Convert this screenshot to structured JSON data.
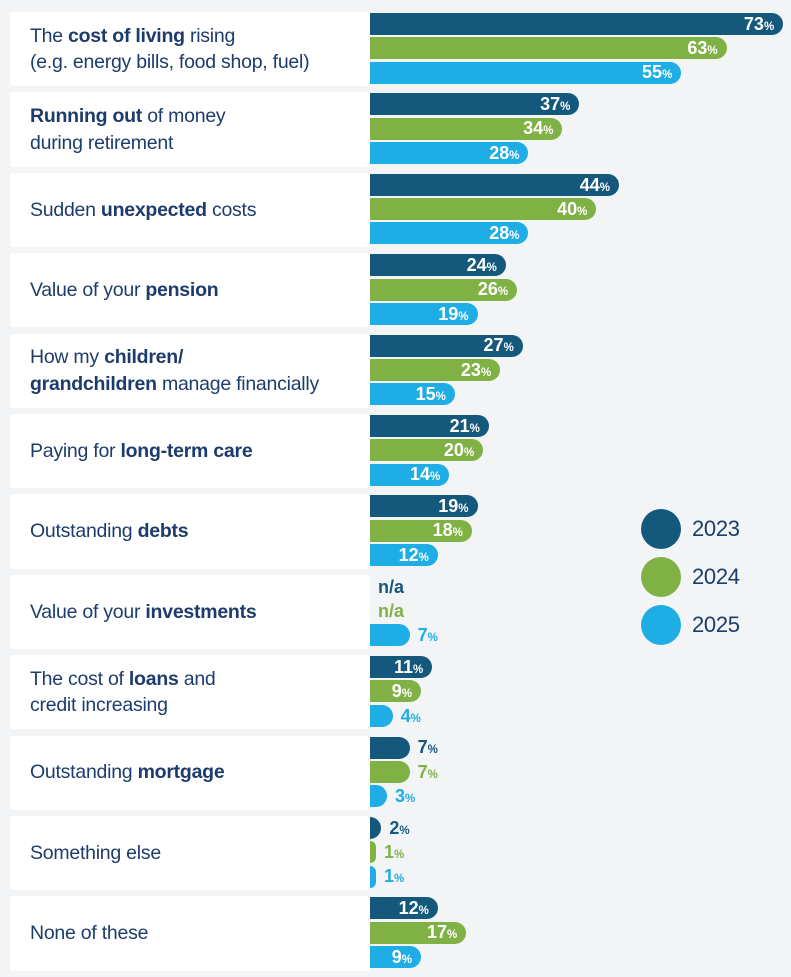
{
  "chart_data": {
    "type": "bar",
    "orientation": "horizontal",
    "unit": "%",
    "na_label": "n/a",
    "series_names": [
      "2023",
      "2024",
      "2025"
    ],
    "series_colors": {
      "2023": "#14597c",
      "2024": "#80b144",
      "2025": "#1eade4"
    },
    "legend": [
      {
        "label": "2023",
        "color": "#14597c"
      },
      {
        "label": "2024",
        "color": "#80b144"
      },
      {
        "label": "2025",
        "color": "#1eade4"
      }
    ],
    "legend_position": "right-middle",
    "axis_range": [
      0,
      74
    ],
    "grid": false,
    "categories": [
      {
        "lines": [
          [
            [
              "The ",
              0
            ],
            [
              "cost of living",
              1
            ],
            [
              " rising",
              0
            ]
          ],
          [
            [
              "(e.g. energy bills, food shop, fuel)",
              0
            ]
          ]
        ],
        "values": [
          73,
          63,
          55
        ]
      },
      {
        "lines": [
          [
            [
              "Running out",
              1
            ],
            [
              " of money",
              0
            ]
          ],
          [
            [
              "during retirement",
              0
            ]
          ]
        ],
        "values": [
          37,
          34,
          28
        ]
      },
      {
        "lines": [
          [
            [
              "Sudden ",
              0
            ],
            [
              "unexpected",
              1
            ],
            [
              " costs",
              0
            ]
          ]
        ],
        "values": [
          44,
          40,
          28
        ]
      },
      {
        "lines": [
          [
            [
              "Value of your ",
              0
            ],
            [
              "pension",
              1
            ]
          ]
        ],
        "values": [
          24,
          26,
          19
        ]
      },
      {
        "lines": [
          [
            [
              "How my ",
              0
            ],
            [
              "children/",
              1
            ]
          ],
          [
            [
              "grandchildren",
              1
            ],
            [
              " manage financially",
              0
            ]
          ]
        ],
        "values": [
          27,
          23,
          15
        ]
      },
      {
        "lines": [
          [
            [
              "Paying for ",
              0
            ],
            [
              "long-term care",
              1
            ]
          ]
        ],
        "values": [
          21,
          20,
          14
        ]
      },
      {
        "lines": [
          [
            [
              "Outstanding ",
              0
            ],
            [
              "debts",
              1
            ]
          ]
        ],
        "values": [
          19,
          18,
          12
        ]
      },
      {
        "lines": [
          [
            [
              "Value of your ",
              0
            ],
            [
              "investments",
              1
            ]
          ]
        ],
        "values": [
          null,
          null,
          7
        ]
      },
      {
        "lines": [
          [
            [
              "The cost of ",
              0
            ],
            [
              "loans",
              1
            ],
            [
              " and",
              0
            ]
          ],
          [
            [
              "credit increasing",
              0
            ]
          ]
        ],
        "values": [
          11,
          9,
          4
        ]
      },
      {
        "lines": [
          [
            [
              "Outstanding ",
              0
            ],
            [
              "mortgage",
              1
            ]
          ]
        ],
        "values": [
          7,
          7,
          3
        ]
      },
      {
        "lines": [
          [
            [
              "Something else",
              0
            ]
          ]
        ],
        "values": [
          2,
          1,
          1
        ]
      },
      {
        "lines": [
          [
            [
              "None of these",
              0
            ]
          ]
        ],
        "values": [
          12,
          17,
          9
        ]
      }
    ]
  },
  "colors": {
    "background": "#f2f4f6",
    "card": "#ffffff",
    "label_text": "#1d3c6c",
    "value_text_inside": "#ffffff"
  }
}
